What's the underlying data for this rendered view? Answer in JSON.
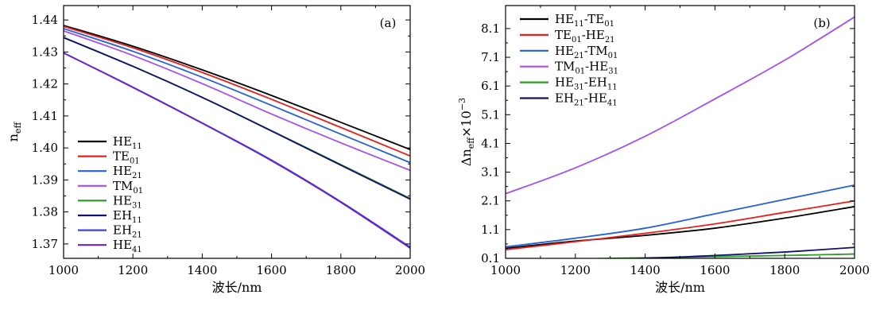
{
  "colors": {
    "HE11": "#000000",
    "TE01": "#e8201d",
    "HE21": "#2461d8",
    "TM01": "#a64ff0",
    "HE31": "#2c9f24",
    "EH11": "#10106e",
    "EH21": "#3f42e8",
    "HE41": "#6a23c8"
  },
  "chart_data": [
    {
      "type": "line",
      "panel_label": "(a)",
      "xlabel": "波长/nm",
      "ylabel_main": "n",
      "ylabel_sub": "eff",
      "xlim": [
        1000,
        2000
      ],
      "ylim": [
        1.3655,
        1.4445
      ],
      "xticks": [
        1000,
        1200,
        1400,
        1600,
        1800,
        2000
      ],
      "xtick_labels": [
        "1000",
        "1200",
        "1400",
        "1600",
        "1800",
        "2000"
      ],
      "yticks": [
        1.37,
        1.38,
        1.39,
        1.4,
        1.41,
        1.42,
        1.43,
        1.44
      ],
      "ytick_labels": [
        "1.37",
        "1.38",
        "1.39",
        "1.40",
        "1.41",
        "1.42",
        "1.43",
        "1.44"
      ],
      "legend_position": "bottom-left",
      "x": [
        1000,
        1200,
        1400,
        1600,
        1800,
        2000
      ],
      "series": [
        {
          "name": "HE",
          "sub": "11",
          "color_key": "HE11",
          "values": [
            1.4383,
            1.4318,
            1.4244,
            1.4164,
            1.408,
            1.3995
          ]
        },
        {
          "name": "TE",
          "sub": "01",
          "color_key": "TE01",
          "values": [
            1.438,
            1.4313,
            1.4236,
            1.4152,
            1.4064,
            1.3975
          ]
        },
        {
          "name": "HE",
          "sub": "21",
          "color_key": "HE21",
          "values": [
            1.4373,
            1.4302,
            1.4221,
            1.4133,
            1.4043,
            1.3954
          ]
        },
        {
          "name": "TM",
          "sub": "01",
          "color_key": "TM01",
          "values": [
            1.4366,
            1.4289,
            1.4201,
            1.4106,
            1.4016,
            1.393
          ]
        },
        {
          "name": "HE",
          "sub": "31",
          "color_key": "HE31",
          "values": [
            1.4345,
            1.4255,
            1.4158,
            1.4054,
            1.3948,
            1.3842
          ]
        },
        {
          "name": "EH",
          "sub": "11",
          "color_key": "EH11",
          "values": [
            1.4345,
            1.4255,
            1.4158,
            1.4053,
            1.3946,
            1.384
          ]
        },
        {
          "name": "EH",
          "sub": "21",
          "color_key": "EH21",
          "values": [
            1.4297,
            1.419,
            1.4078,
            1.3962,
            1.3832,
            1.369
          ]
        },
        {
          "name": "HE",
          "sub": "41",
          "color_key": "HE41",
          "values": [
            1.4297,
            1.4189,
            1.4077,
            1.396,
            1.383,
            1.3687
          ]
        }
      ]
    },
    {
      "type": "line",
      "panel_label": "(b)",
      "xlabel": "波长/nm",
      "ylabel_main": "Δn",
      "ylabel_sub": "eff",
      "ylabel_tail": "×10",
      "ylabel_exp": "−3",
      "xlim": [
        1000,
        2000
      ],
      "ylim": [
        0.1,
        8.9
      ],
      "xticks": [
        1000,
        1200,
        1400,
        1600,
        1800,
        2000
      ],
      "xtick_labels": [
        "1000",
        "1200",
        "1400",
        "1600",
        "1800",
        "2000"
      ],
      "yticks": [
        0.1,
        1.1,
        2.1,
        3.1,
        4.1,
        5.1,
        6.1,
        7.1,
        8.1
      ],
      "ytick_labels": [
        "0.1",
        "1.1",
        "2.1",
        "3.1",
        "4.1",
        "5.1",
        "6.1",
        "7.1",
        "8.1"
      ],
      "legend_position": "top-left",
      "x": [
        1000,
        1200,
        1400,
        1600,
        1800,
        2000
      ],
      "series": [
        {
          "name": "HE",
          "sub": "11",
          "name2": "-TE",
          "sub2": "01",
          "color_key": "HE11",
          "values": [
            0.45,
            0.7,
            0.9,
            1.15,
            1.5,
            1.9
          ]
        },
        {
          "name": "TE",
          "sub": "01",
          "name2": "-HE",
          "sub2": "21",
          "color_key": "TE01",
          "values": [
            0.4,
            0.68,
            0.97,
            1.3,
            1.7,
            2.1
          ]
        },
        {
          "name": "HE",
          "sub": "21",
          "name2": "-TM",
          "sub2": "01",
          "color_key": "HE21",
          "values": [
            0.5,
            0.8,
            1.15,
            1.65,
            2.15,
            2.65
          ]
        },
        {
          "name": "TM",
          "sub": "01",
          "name2": "-HE",
          "sub2": "31",
          "color_key": "TM01",
          "values": [
            2.35,
            3.25,
            4.35,
            5.65,
            7.0,
            8.5
          ]
        },
        {
          "name": "HE",
          "sub": "31",
          "name2": "-EH",
          "sub2": "11",
          "color_key": "HE31",
          "values": [
            0.05,
            0.08,
            0.12,
            0.16,
            0.2,
            0.25
          ]
        },
        {
          "name": "EH",
          "sub": "21",
          "name2": "-HE",
          "sub2": "41",
          "color_key": "EH11",
          "values": [
            0.0,
            0.05,
            0.1,
            0.2,
            0.32,
            0.48
          ]
        }
      ]
    }
  ]
}
